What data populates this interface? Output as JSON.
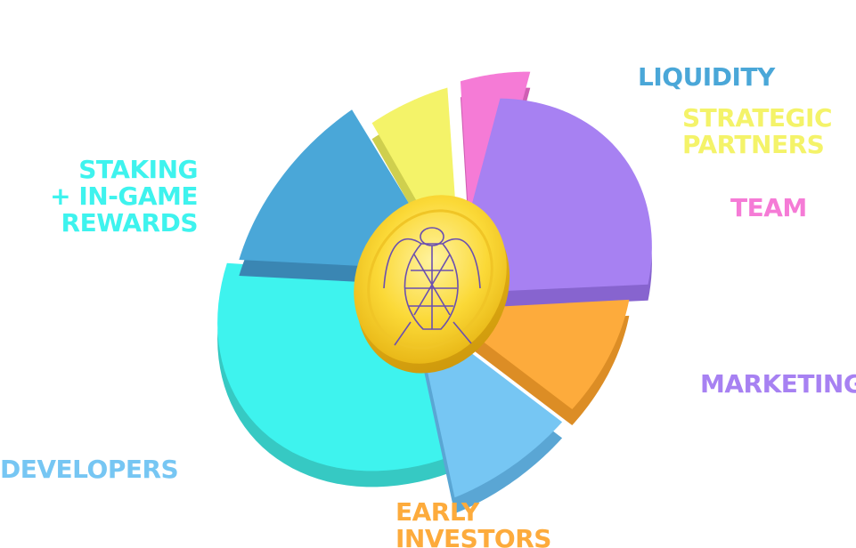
{
  "chart_data": {
    "type": "pie",
    "style": "3d-exploded",
    "center_icon": "gold-coin-beetle-icon",
    "slices": [
      {
        "key": "staking",
        "label_lines": [
          "STAKING",
          "+ IN-GAME",
          "REWARDS"
        ],
        "value": 33,
        "color": "#3ef3ee",
        "side_color": "#36c9c3",
        "align": "right"
      },
      {
        "key": "liquidity",
        "label_lines": [
          "LIQUIDITY"
        ],
        "value": 13,
        "color": "#4aa7d8",
        "side_color": "#3a86b3",
        "align": "left"
      },
      {
        "key": "strategic",
        "label_lines": [
          "STRATEGIC",
          "PARTNERS"
        ],
        "value": 6,
        "color": "#f4f369",
        "side_color": "#cfcf4e",
        "align": "left"
      },
      {
        "key": "team",
        "label_lines": [
          "TEAM"
        ],
        "value": 5,
        "color": "#f57bd6",
        "side_color": "#cf5fb3",
        "align": "left"
      },
      {
        "key": "marketing",
        "label_lines": [
          "MARKETING"
        ],
        "value": 24,
        "color": "#a781f2",
        "side_color": "#8764cf",
        "align": "left"
      },
      {
        "key": "early",
        "label_lines": [
          "EARLY",
          "INVESTORS"
        ],
        "value": 10,
        "color": "#fdab3c",
        "side_color": "#dc8d25",
        "align": "left"
      },
      {
        "key": "developers",
        "label_lines": [
          "DEVELOPERS"
        ],
        "value": 9,
        "color": "#76c6f3",
        "side_color": "#5aa6d4",
        "align": "left"
      }
    ]
  }
}
